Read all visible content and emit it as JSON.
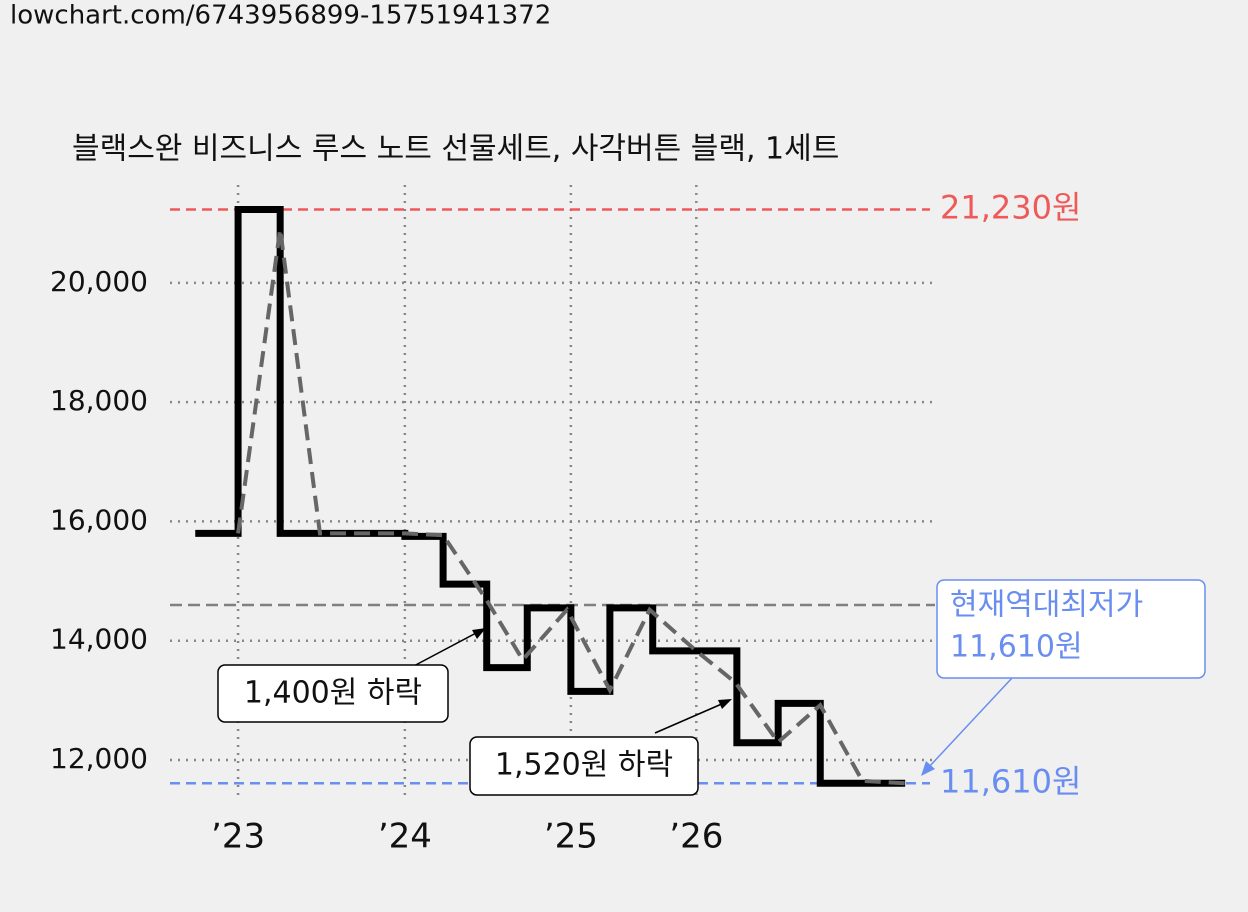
{
  "url": "lowchart.com/6743956899-15751941372",
  "chart_data": {
    "type": "step",
    "title": "블랙스완 비즈니스 루스 노트 선물세트, 사각버튼 블랙, 1세트",
    "xlim": [
      0,
      100
    ],
    "xticks": [
      {
        "value": 8.9,
        "label": "’23"
      },
      {
        "value": 30.7,
        "label": "’24"
      },
      {
        "value": 52.4,
        "label": "’25"
      },
      {
        "value": 68.8,
        "label": "’26"
      }
    ],
    "ylim": [
      11330,
      21640
    ],
    "yticks": [
      {
        "value": 12000,
        "label": "12,000"
      },
      {
        "value": 14000,
        "label": "14,000"
      },
      {
        "value": 16000,
        "label": "16,000"
      },
      {
        "value": 18000,
        "label": "18,000"
      },
      {
        "value": 20000,
        "label": "20,000"
      }
    ],
    "grid": true,
    "series": [
      {
        "color": "#000000",
        "x": [
          3.3,
          8.9,
          14.4,
          30.7,
          35.7,
          41.4,
          46.7,
          52.4,
          57.5,
          63.1,
          74.1,
          79.5,
          85.0,
          96.1
        ],
        "values": [
          15800,
          21230,
          15800,
          15750,
          14950,
          13550,
          14550,
          13150,
          14550,
          13830,
          12290,
          12950,
          11610,
          11610
        ]
      },
      {
        "color": "#666666",
        "x": [
          8.9,
          14.4,
          19.6,
          30.7,
          35.7,
          41.4,
          46.1,
          51.9,
          57.5,
          62.7,
          68.6,
          73.9,
          79.5,
          85.0,
          90.5,
          96.1
        ],
        "values": [
          15800,
          20900,
          15800,
          15800,
          15770,
          14680,
          13680,
          14520,
          13170,
          14520,
          13850,
          13300,
          12300,
          12920,
          11650,
          11610
        ]
      }
    ],
    "average": {
      "value": 14600,
      "color": "#808080"
    },
    "max": {
      "value": 21230,
      "label": "21,230원",
      "color": "#ee5a5a"
    },
    "min": {
      "value": 11610,
      "label": "11,610원",
      "color": "#6a8ef0"
    },
    "annotations": [
      "1,400원 하락",
      "1,520원 하락"
    ],
    "current_low": [
      "현재역대최저가",
      "11,610원"
    ]
  }
}
